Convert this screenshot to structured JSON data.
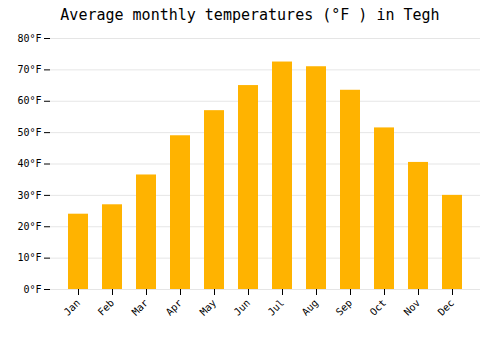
{
  "chart_data": {
    "type": "bar",
    "title": "Average monthly temperatures (°F ) in Tegh",
    "categories": [
      "Jan",
      "Feb",
      "Mar",
      "Apr",
      "May",
      "Jun",
      "Jul",
      "Aug",
      "Sep",
      "Oct",
      "Nov",
      "Dec"
    ],
    "values": [
      24,
      27,
      36.5,
      49,
      57,
      65,
      72.5,
      71,
      63.5,
      51.5,
      40.5,
      30
    ],
    "color": "#FFB300",
    "ylim": [
      0,
      80
    ],
    "yticks": [
      {
        "value": 0,
        "label": "0°F"
      },
      {
        "value": 10,
        "label": "10°F"
      },
      {
        "value": 20,
        "label": "20°F"
      },
      {
        "value": 30,
        "label": "30°F"
      },
      {
        "value": 40,
        "label": "40°F"
      },
      {
        "value": 50,
        "label": "50°F"
      },
      {
        "value": 60,
        "label": "60°F"
      },
      {
        "value": 70,
        "label": "70°F"
      },
      {
        "value": 80,
        "label": "80°F"
      }
    ],
    "grid": true
  }
}
